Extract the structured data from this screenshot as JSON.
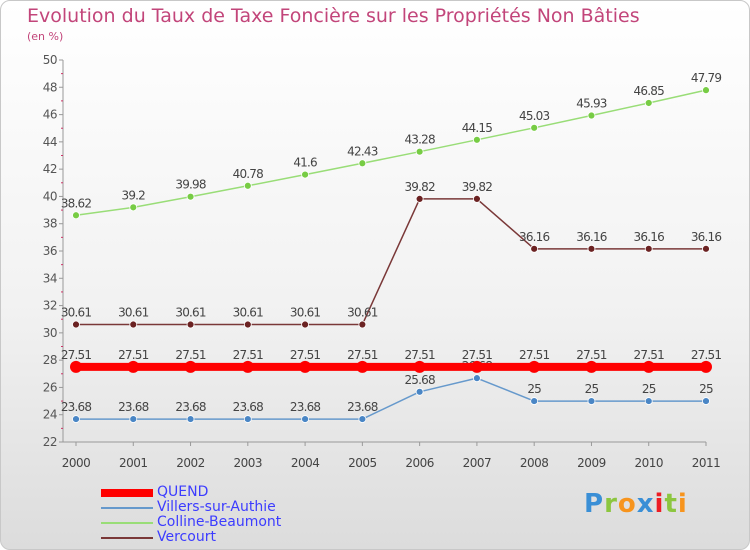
{
  "header": {
    "title": "Evolution du Taux de Taxe Foncière sur les Propriétés Non Bâties",
    "subtitle": "(en %)"
  },
  "logo": {
    "letters": [
      {
        "ch": "P",
        "color": "#3a8fd6"
      },
      {
        "ch": "r",
        "color": "#8cc63f"
      },
      {
        "ch": "o",
        "color": "#f7941d"
      },
      {
        "ch": "x",
        "color": "#3a8fd6"
      },
      {
        "ch": "i",
        "color": "#ed1c24"
      },
      {
        "ch": "t",
        "color": "#8cc63f"
      },
      {
        "ch": "i",
        "color": "#f7941d"
      }
    ]
  },
  "chart_data": {
    "type": "line",
    "title": "Evolution du Taux de Taxe Foncière sur les Propriétés Non Bâties",
    "ylabel": "(en %)",
    "xlabel": "",
    "x": [
      "2000",
      "2001",
      "2002",
      "2003",
      "2004",
      "2005",
      "2006",
      "2007",
      "2008",
      "2009",
      "2010",
      "2011"
    ],
    "ylim": [
      22,
      50
    ],
    "yticks": [
      "22",
      "24",
      "26",
      "28",
      "30",
      "32",
      "34",
      "36",
      "38",
      "40",
      "42",
      "44",
      "46",
      "48",
      "50"
    ],
    "grid": false,
    "legend": "bottom-left",
    "series": [
      {
        "name": "QUEND",
        "color": "#ff0000",
        "point_color": "#ff0000",
        "thick": true,
        "values": [
          27.51,
          27.51,
          27.51,
          27.51,
          27.51,
          27.51,
          27.51,
          27.51,
          27.51,
          27.51,
          27.51,
          27.51
        ],
        "labels": [
          "27.51",
          "27.51",
          "27.51",
          "27.51",
          "27.51",
          "27.51",
          "27.51",
          "27.51",
          "27.51",
          "27.51",
          "27.51",
          "27.51"
        ]
      },
      {
        "name": "Villers-sur-Authie",
        "color": "#6699cc",
        "point_color": "#4a86c5",
        "thick": false,
        "values": [
          23.68,
          23.68,
          23.68,
          23.68,
          23.68,
          23.68,
          25.68,
          26.68,
          25,
          25,
          25,
          25
        ],
        "labels": [
          "23.68",
          "23.68",
          "23.68",
          "23.68",
          "23.68",
          "23.68",
          "25.68",
          "26.68",
          "25",
          "25",
          "25",
          "25"
        ]
      },
      {
        "name": "Colline-Beaumont",
        "color": "#99dd77",
        "point_color": "#77cc44",
        "thick": false,
        "values": [
          38.62,
          39.2,
          39.98,
          40.78,
          41.6,
          42.43,
          43.28,
          44.15,
          45.03,
          45.93,
          46.85,
          47.79
        ],
        "labels": [
          "38.62",
          "39.2",
          "39.98",
          "40.78",
          "41.6",
          "42.43",
          "43.28",
          "44.15",
          "45.03",
          "45.93",
          "46.85",
          "47.79"
        ]
      },
      {
        "name": "Vercourt",
        "color": "#7a3838",
        "point_color": "#6b2222",
        "thick": false,
        "values": [
          30.61,
          30.61,
          30.61,
          30.61,
          30.61,
          30.61,
          39.82,
          39.82,
          36.16,
          36.16,
          36.16,
          36.16
        ],
        "labels": [
          "30.61",
          "30.61",
          "30.61",
          "30.61",
          "30.61",
          "30.61",
          "39.82",
          "39.82",
          "36.16",
          "36.16",
          "36.16",
          "36.16"
        ]
      }
    ]
  }
}
